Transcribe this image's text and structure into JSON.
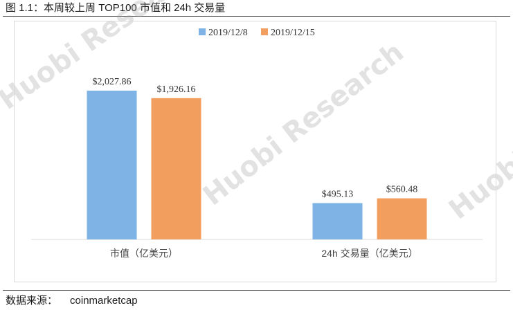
{
  "figure": {
    "title": "图 1.1：本周较上周 TOP100 市值和 24h 交易量",
    "source_label": "数据来源：",
    "source_value": "coinmarketcap"
  },
  "watermark": {
    "text": "Huobi Research",
    "color": "#b0b0b0"
  },
  "chart_data": {
    "type": "bar",
    "categories": [
      "市值（亿美元）",
      "24h 交易量（亿美元）"
    ],
    "series": [
      {
        "name": "2019/12/8",
        "color": "#7fb2e5",
        "values": [
          2027.86,
          495.13
        ],
        "labels": [
          "$2,027.86",
          "$495.13"
        ]
      },
      {
        "name": "2019/12/15",
        "color": "#f19e5e",
        "values": [
          1926.16,
          560.48
        ],
        "labels": [
          "$1,926.16",
          "$560.48"
        ]
      }
    ],
    "ylim": [
      0,
      2300
    ],
    "grid": false,
    "legend": "top-center"
  }
}
